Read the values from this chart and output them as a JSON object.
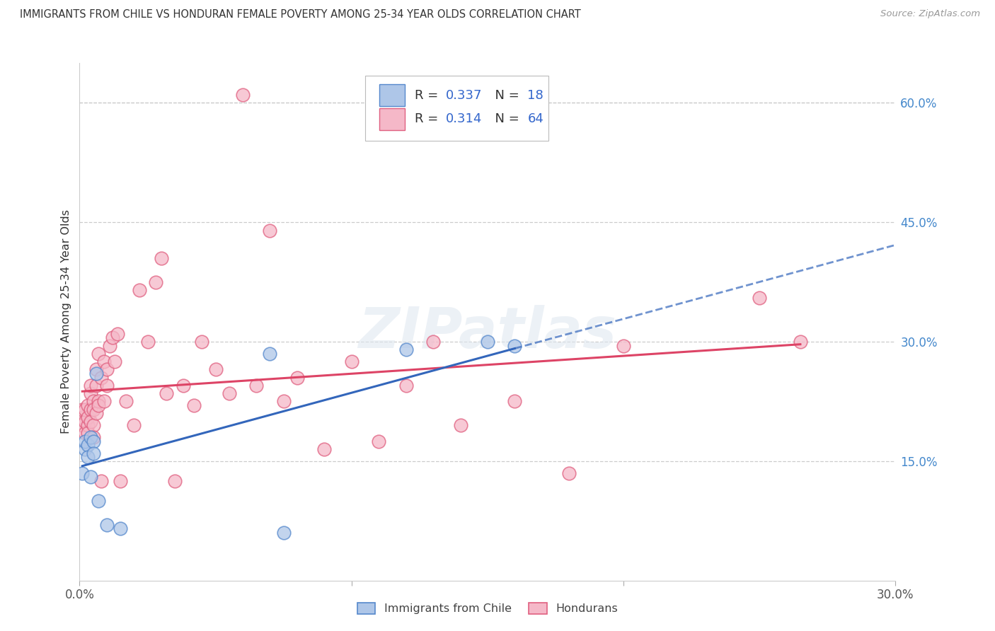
{
  "title": "IMMIGRANTS FROM CHILE VS HONDURAN FEMALE POVERTY AMONG 25-34 YEAR OLDS CORRELATION CHART",
  "source": "Source: ZipAtlas.com",
  "ylabel": "Female Poverty Among 25-34 Year Olds",
  "right_yticks": [
    "15.0%",
    "30.0%",
    "45.0%",
    "60.0%"
  ],
  "right_ytick_vals": [
    0.15,
    0.3,
    0.45,
    0.6
  ],
  "xlim": [
    0.0,
    0.3
  ],
  "ylim": [
    0.0,
    0.65
  ],
  "chile_fill": "#aec6e8",
  "chile_edge": "#5588cc",
  "honduran_fill": "#f5b8c8",
  "honduran_edge": "#e06080",
  "trendline_chile": "#3366bb",
  "trendline_honduran": "#dd4466",
  "grid_color": "#cccccc",
  "legend_R_color": "#3366bb",
  "legend_N_color": "#3366bb",
  "legend_R_chile": "0.337",
  "legend_N_chile": "18",
  "legend_R_honduran": "0.314",
  "legend_N_honduran": "64",
  "watermark": "ZIPatlas",
  "chile_x": [
    0.001,
    0.002,
    0.002,
    0.003,
    0.003,
    0.004,
    0.004,
    0.005,
    0.005,
    0.006,
    0.007,
    0.01,
    0.015,
    0.07,
    0.075,
    0.12,
    0.15,
    0.16
  ],
  "chile_y": [
    0.135,
    0.165,
    0.175,
    0.17,
    0.155,
    0.18,
    0.13,
    0.175,
    0.16,
    0.26,
    0.1,
    0.07,
    0.065,
    0.285,
    0.06,
    0.29,
    0.3,
    0.295
  ],
  "honduran_x": [
    0.001,
    0.001,
    0.001,
    0.002,
    0.002,
    0.002,
    0.003,
    0.003,
    0.003,
    0.003,
    0.004,
    0.004,
    0.004,
    0.004,
    0.005,
    0.005,
    0.005,
    0.005,
    0.006,
    0.006,
    0.006,
    0.007,
    0.007,
    0.007,
    0.008,
    0.008,
    0.009,
    0.009,
    0.01,
    0.01,
    0.011,
    0.012,
    0.013,
    0.014,
    0.015,
    0.017,
    0.02,
    0.022,
    0.025,
    0.028,
    0.03,
    0.032,
    0.035,
    0.038,
    0.042,
    0.045,
    0.05,
    0.055,
    0.06,
    0.065,
    0.07,
    0.075,
    0.08,
    0.09,
    0.1,
    0.11,
    0.12,
    0.13,
    0.14,
    0.16,
    0.18,
    0.2,
    0.25,
    0.265
  ],
  "honduran_y": [
    0.205,
    0.195,
    0.215,
    0.2,
    0.185,
    0.215,
    0.195,
    0.22,
    0.205,
    0.185,
    0.235,
    0.245,
    0.215,
    0.2,
    0.225,
    0.195,
    0.215,
    0.18,
    0.245,
    0.265,
    0.21,
    0.225,
    0.285,
    0.22,
    0.125,
    0.255,
    0.225,
    0.275,
    0.245,
    0.265,
    0.295,
    0.305,
    0.275,
    0.31,
    0.125,
    0.225,
    0.195,
    0.365,
    0.3,
    0.375,
    0.405,
    0.235,
    0.125,
    0.245,
    0.22,
    0.3,
    0.265,
    0.235,
    0.61,
    0.245,
    0.44,
    0.225,
    0.255,
    0.165,
    0.275,
    0.175,
    0.245,
    0.3,
    0.195,
    0.225,
    0.135,
    0.295,
    0.355,
    0.3
  ]
}
